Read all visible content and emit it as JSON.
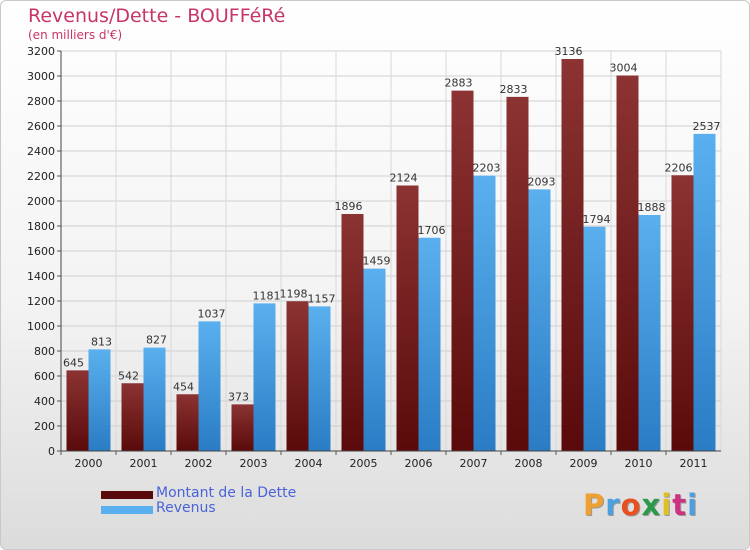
{
  "title": "Revenus/Dette - BOUFFéRé",
  "subtitle": "(en milliers d'€)",
  "logo_text": "Proxiti",
  "colors": {
    "title": "#c8356a",
    "legend_text": "#4a63d8",
    "dette_top": "#8c3333",
    "dette_bottom": "#5a0a0a",
    "revenus_top": "#5ab0ee",
    "revenus_bottom": "#2a7cc4"
  },
  "chart_data": {
    "type": "bar",
    "categories": [
      "2000",
      "2001",
      "2002",
      "2003",
      "2004",
      "2005",
      "2006",
      "2007",
      "2008",
      "2009",
      "2010",
      "2011"
    ],
    "series": [
      {
        "name": "Montant de la Dette",
        "values": [
          645,
          542,
          454,
          373,
          1198,
          1896,
          2124,
          2883,
          2833,
          3136,
          3004,
          2206
        ]
      },
      {
        "name": "Revenus",
        "values": [
          813,
          827,
          1037,
          1181,
          1157,
          1459,
          1706,
          2203,
          2093,
          1794,
          1888,
          2537
        ]
      }
    ],
    "yticks": [
      0,
      200,
      400,
      600,
      800,
      1000,
      1200,
      1400,
      1600,
      1800,
      2000,
      2200,
      2400,
      2600,
      2800,
      3000,
      3200
    ],
    "ylim": [
      0,
      3200
    ],
    "grid": true,
    "legend_position": "bottom-left"
  }
}
